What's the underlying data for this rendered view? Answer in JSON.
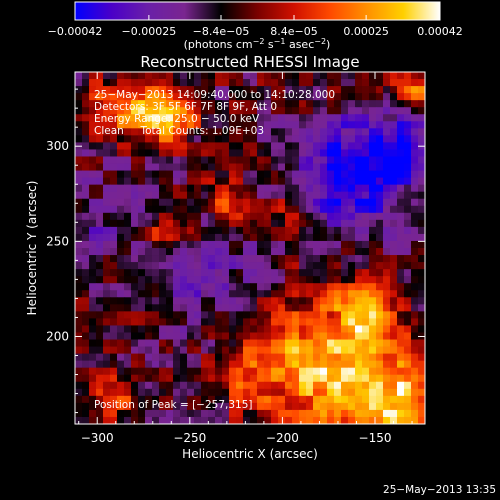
{
  "chart_data": {
    "type": "heatmap",
    "title": "Reconstructed RHESSI Image",
    "xlabel": "Heliocentric X (arcsec)",
    "ylabel": "Heliocentric Y (arcsec)",
    "xlim": [
      -312,
      -123
    ],
    "ylim": [
      154,
      339
    ],
    "x_ticks": [
      -300,
      -250,
      -200,
      -150
    ],
    "x_tick_labels": [
      "−300",
      "−250",
      "−200",
      "−150"
    ],
    "y_ticks": [
      200,
      250,
      300
    ],
    "y_tick_labels": [
      "200",
      "250",
      "300"
    ],
    "colorbar": {
      "range": [
        -0.00042,
        0.00042
      ],
      "ticks": [
        -0.00042,
        -0.00025,
        -8.4e-05,
        8.4e-05,
        0.00025,
        0.00042
      ],
      "tick_labels": [
        "−0.00042",
        "−0.00025",
        "−8.4e−05",
        "8.4e−05",
        "0.00025",
        "0.00042"
      ],
      "units_main": "(photons cm",
      "units_sup1": "−2",
      "units_mid": " s",
      "units_sup2": "−1",
      "units_mid2": " asec",
      "units_sup3": "−2",
      "units_end": ")"
    },
    "annotations": {
      "time_range": "25−May−2013 14:09:40.000 to 14:10:28.000",
      "detectors": "Detectors: 3F 5F 6F 7F 8F 9F, Att 0",
      "energy": "Energy Range: 25.0 − 50.0 keV",
      "method": "Clean     Total Counts: 1.09E+03",
      "peak": "Position of Peak = [−257,315]"
    },
    "peak_position": [
      -257,
      315
    ],
    "grid": false,
    "colormap": [
      "#0000ff",
      "#4a00c8",
      "#6a1fa8",
      "#7a2590",
      "#000000",
      "#7a0000",
      "#d01000",
      "#ff4a00",
      "#ff9000",
      "#ffd000",
      "#ffffff"
    ],
    "field_features": [
      {
        "x": -180,
        "y": 185,
        "amp": 0.0004,
        "sigma": 22
      },
      {
        "x": -140,
        "y": 165,
        "amp": 0.00038,
        "sigma": 18
      },
      {
        "x": -155,
        "y": 215,
        "amp": 0.0003,
        "sigma": 12
      },
      {
        "x": -275,
        "y": 318,
        "amp": 0.00032,
        "sigma": 12
      },
      {
        "x": -257,
        "y": 315,
        "amp": 0.0003,
        "sigma": 8
      },
      {
        "x": -130,
        "y": 330,
        "amp": 0.00028,
        "sigma": 10
      },
      {
        "x": -230,
        "y": 270,
        "amp": 0.00022,
        "sigma": 9
      },
      {
        "x": -262,
        "y": 254,
        "amp": 0.0002,
        "sigma": 7
      },
      {
        "x": -300,
        "y": 320,
        "amp": 0.0002,
        "sigma": 10
      },
      {
        "x": -220,
        "y": 180,
        "amp": 0.0002,
        "sigma": 12
      },
      {
        "x": -290,
        "y": 170,
        "amp": 0.00018,
        "sigma": 10
      },
      {
        "x": -195,
        "y": 265,
        "amp": 0.00014,
        "sigma": 7
      },
      {
        "x": -165,
        "y": 285,
        "amp": -0.0004,
        "sigma": 18
      },
      {
        "x": -135,
        "y": 300,
        "amp": -0.0003,
        "sigma": 14
      },
      {
        "x": -240,
        "y": 230,
        "amp": -0.00012,
        "sigma": 20
      },
      {
        "x": -300,
        "y": 260,
        "amp": -0.00012,
        "sigma": 16
      }
    ]
  },
  "footer": {
    "timestamp": "25−May−2013 13:35"
  }
}
